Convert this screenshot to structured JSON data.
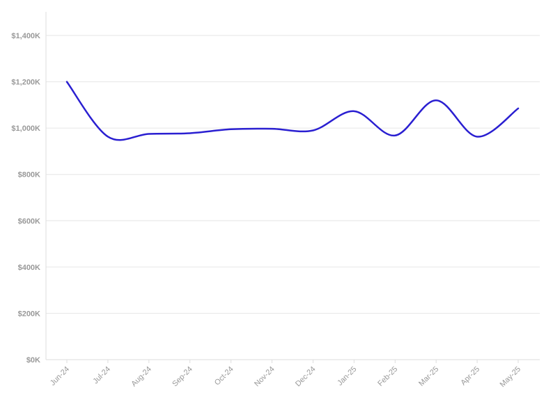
{
  "chart_data": {
    "type": "line",
    "title": "",
    "xlabel": "",
    "ylabel": "",
    "categories": [
      "Jun-24",
      "Jul-24",
      "Aug-24",
      "Sep-24",
      "Oct-24",
      "Nov-24",
      "Dec-24",
      "Jan-25",
      "Feb-25",
      "Mar-25",
      "Apr-25",
      "May-25"
    ],
    "series": [
      {
        "values": [
          1200000,
          963000,
          975000,
          978000,
          995000,
          997000,
          990000,
          1073000,
          968000,
          1120000,
          963000,
          1085000
        ],
        "color": "#2a1fd1"
      }
    ],
    "yticks": [
      0,
      200000,
      400000,
      600000,
      800000,
      1000000,
      1200000,
      1400000
    ],
    "ytick_labels": [
      "$0K",
      "$200K",
      "$400K",
      "$600K",
      "$800K",
      "$1,000K",
      "$1,200K",
      "$1,400K"
    ],
    "ylim": [
      0,
      1500000
    ],
    "grid": true,
    "legend": "none"
  }
}
